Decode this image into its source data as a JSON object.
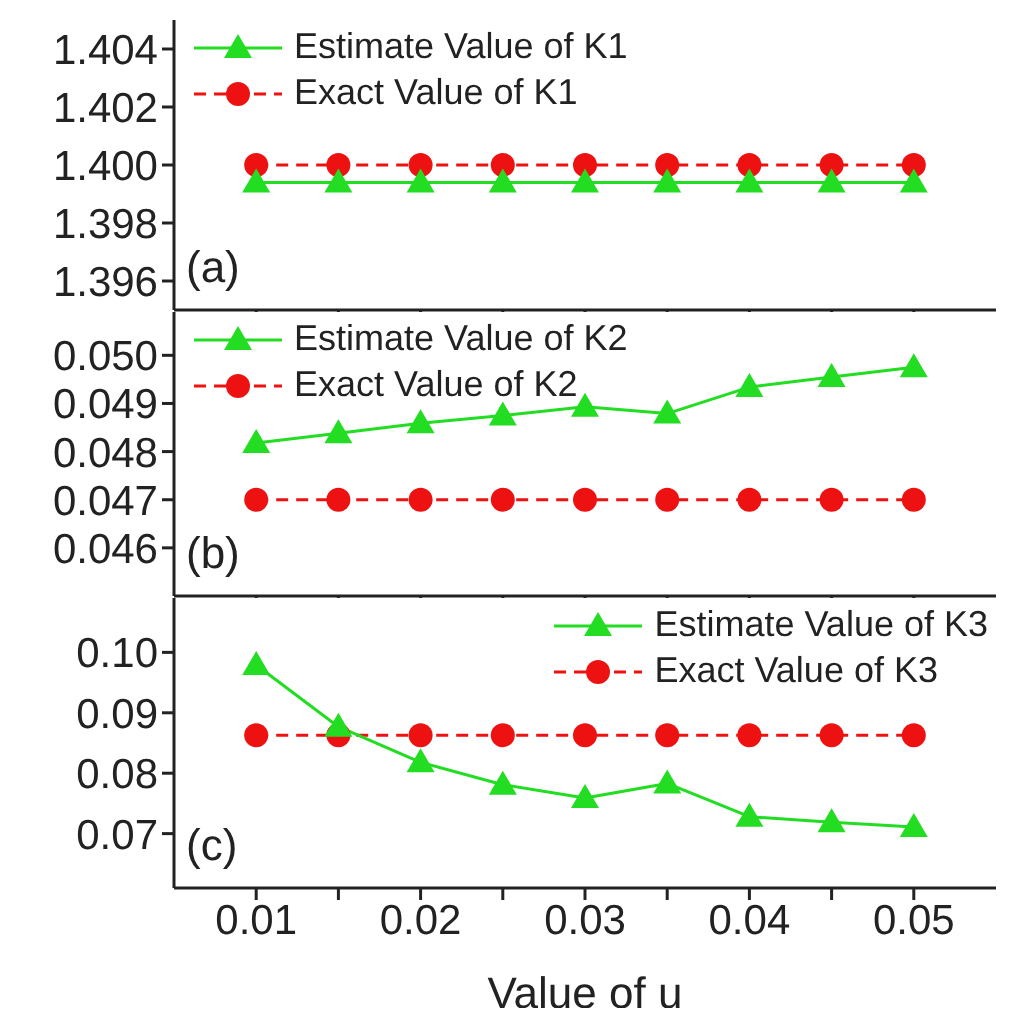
{
  "chart_data": [
    {
      "type": "line",
      "annotations": [
        "(a)"
      ],
      "x": [
        0.01,
        0.015,
        0.02,
        0.025,
        0.03,
        0.035,
        0.04,
        0.045,
        0.05
      ],
      "series": [
        {
          "name": "Estimate Value of K1",
          "color": "#22dd22",
          "marker": "triangle",
          "line_style": "solid",
          "values": [
            1.3994,
            1.3994,
            1.3994,
            1.3994,
            1.3994,
            1.3994,
            1.3994,
            1.3994,
            1.3994
          ]
        },
        {
          "name": "Exact Value of K1",
          "color": "#ee1111",
          "marker": "circle",
          "line_style": "dashed",
          "values": [
            1.4,
            1.4,
            1.4,
            1.4,
            1.4,
            1.4,
            1.4,
            1.4,
            1.4
          ]
        }
      ],
      "xlim": [
        0.005,
        0.055
      ],
      "xticks": [
        {
          "value": 0.01,
          "label": null
        },
        {
          "value": 0.015,
          "label": null
        },
        {
          "value": 0.02,
          "label": null
        },
        {
          "value": 0.025,
          "label": null
        },
        {
          "value": 0.03,
          "label": null
        },
        {
          "value": 0.035,
          "label": null
        },
        {
          "value": 0.04,
          "label": null
        },
        {
          "value": 0.045,
          "label": null
        },
        {
          "value": 0.05,
          "label": null
        }
      ],
      "ylim": [
        1.395,
        1.405
      ],
      "yticks": [
        {
          "value": 1.396,
          "label": "1.396"
        },
        {
          "value": 1.398,
          "label": "1.398"
        },
        {
          "value": 1.4,
          "label": "1.400"
        },
        {
          "value": 1.402,
          "label": "1.402"
        },
        {
          "value": 1.404,
          "label": "1.404"
        }
      ],
      "legend": "top left",
      "grid": false,
      "tick_labels": "y"
    },
    {
      "type": "line",
      "annotations": [
        "(b)"
      ],
      "x": [
        0.01,
        0.015,
        0.02,
        0.025,
        0.03,
        0.035,
        0.04,
        0.045,
        0.05
      ],
      "series": [
        {
          "name": "Estimate Value of K2",
          "color": "#22dd22",
          "marker": "triangle",
          "line_style": "solid",
          "values": [
            0.04818,
            0.04838,
            0.04859,
            0.04875,
            0.04893,
            0.04879,
            0.04934,
            0.04955,
            0.04975
          ]
        },
        {
          "name": "Exact Value of K2",
          "color": "#ee1111",
          "marker": "circle",
          "line_style": "dashed",
          "values": [
            0.047,
            0.047,
            0.047,
            0.047,
            0.047,
            0.047,
            0.047,
            0.047,
            0.047
          ]
        }
      ],
      "xlim": [
        0.005,
        0.055
      ],
      "xticks": [
        {
          "value": 0.01,
          "label": null
        },
        {
          "value": 0.015,
          "label": null
        },
        {
          "value": 0.02,
          "label": null
        },
        {
          "value": 0.025,
          "label": null
        },
        {
          "value": 0.03,
          "label": null
        },
        {
          "value": 0.035,
          "label": null
        },
        {
          "value": 0.04,
          "label": null
        },
        {
          "value": 0.045,
          "label": null
        },
        {
          "value": 0.05,
          "label": null
        }
      ],
      "ylim": [
        0.045,
        0.0509
      ],
      "yticks": [
        {
          "value": 0.046,
          "label": "0.046"
        },
        {
          "value": 0.047,
          "label": "0.047"
        },
        {
          "value": 0.048,
          "label": "0.048"
        },
        {
          "value": 0.049,
          "label": "0.049"
        },
        {
          "value": 0.05,
          "label": "0.050"
        }
      ],
      "legend": "top left",
      "grid": false,
      "tick_labels": "y"
    },
    {
      "type": "line",
      "annotations": [
        "(c)"
      ],
      "xlabel": "Value of u",
      "x": [
        0.01,
        0.015,
        0.02,
        0.025,
        0.03,
        0.035,
        0.04,
        0.045,
        0.05
      ],
      "series": [
        {
          "name": "Estimate Value of K3",
          "color": "#22dd22",
          "marker": "triangle",
          "line_style": "solid",
          "values": [
            0.0979,
            0.0877,
            0.0818,
            0.0781,
            0.0759,
            0.0783,
            0.0728,
            0.0719,
            0.0711
          ]
        },
        {
          "name": "Exact Value of K3",
          "color": "#ee1111",
          "marker": "circle",
          "line_style": "dashed",
          "values": [
            0.0863,
            0.0863,
            0.0863,
            0.0863,
            0.0863,
            0.0863,
            0.0863,
            0.0863,
            0.0863
          ]
        }
      ],
      "xlim": [
        0.005,
        0.055
      ],
      "xticks": [
        {
          "value": 0.01,
          "label": "0.01"
        },
        {
          "value": 0.015,
          "label": null
        },
        {
          "value": 0.02,
          "label": "0.02"
        },
        {
          "value": 0.025,
          "label": null
        },
        {
          "value": 0.03,
          "label": "0.03"
        },
        {
          "value": 0.035,
          "label": null
        },
        {
          "value": 0.04,
          "label": "0.04"
        },
        {
          "value": 0.045,
          "label": null
        },
        {
          "value": 0.05,
          "label": "0.05"
        }
      ],
      "ylim": [
        0.061,
        0.109
      ],
      "yticks": [
        {
          "value": 0.07,
          "label": "0.07"
        },
        {
          "value": 0.08,
          "label": "0.08"
        },
        {
          "value": 0.09,
          "label": "0.09"
        },
        {
          "value": 0.1,
          "label": "0.10"
        }
      ],
      "legend": "top right",
      "grid": false
    }
  ]
}
